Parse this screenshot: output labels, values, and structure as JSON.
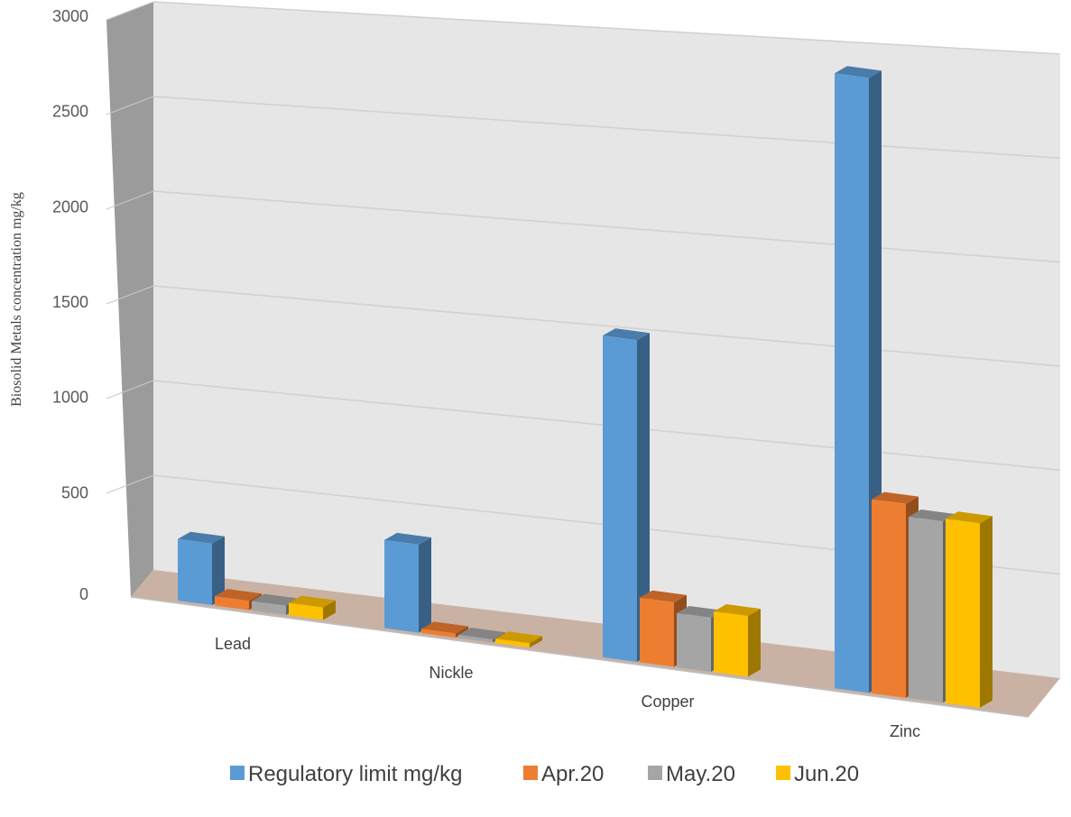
{
  "chart_data": {
    "type": "bar",
    "title": "",
    "xlabel": "",
    "ylabel": "Biosolid Metals concentration mg/kg",
    "categories": [
      "Lead",
      "Nickle",
      "Copper",
      "Zinc"
    ],
    "series": [
      {
        "name": "Regulatory limit mg/kg",
        "color": "#5B9BD5",
        "values": [
          300,
          420,
          1500,
          2800
        ]
      },
      {
        "name": "Apr.20",
        "color": "#ED7D31",
        "values": [
          45,
          20,
          300,
          880
        ]
      },
      {
        "name": "May.20",
        "color": "#A5A5A5",
        "values": [
          45,
          15,
          250,
          820
        ]
      },
      {
        "name": "Jun.20",
        "color": "#FFC000",
        "values": [
          60,
          20,
          280,
          830
        ]
      }
    ],
    "ylim": [
      0,
      3000
    ],
    "yticks": [
      "0",
      "500",
      "1000",
      "1500",
      "2000",
      "2500",
      "3000"
    ],
    "grid": true,
    "legend_position": "bottom",
    "style": "3d-clustered-column"
  }
}
